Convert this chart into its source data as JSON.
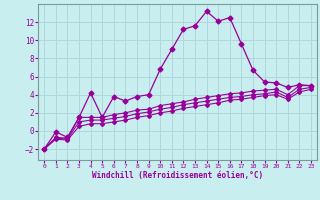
{
  "xlabel": "Windchill (Refroidissement éolien,°C)",
  "background_color": "#c8eef0",
  "grid_color": "#b0d8dc",
  "line_color": "#990099",
  "xlim": [
    -0.5,
    23.5
  ],
  "ylim": [
    -3.2,
    14.0
  ],
  "yticks": [
    -2,
    0,
    2,
    4,
    6,
    8,
    10,
    12
  ],
  "xticks": [
    0,
    1,
    2,
    3,
    4,
    5,
    6,
    7,
    8,
    9,
    10,
    11,
    12,
    13,
    14,
    15,
    16,
    17,
    18,
    19,
    20,
    21,
    22,
    23
  ],
  "series": [
    {
      "x": [
        0,
        1,
        2,
        3,
        4,
        5,
        6,
        7,
        8,
        9,
        10,
        11,
        12,
        13,
        14,
        15,
        16,
        17,
        18,
        19,
        20,
        21,
        22,
        23
      ],
      "y": [
        -2,
        -0.1,
        -0.7,
        1.5,
        4.2,
        1.5,
        3.8,
        3.3,
        3.8,
        4.0,
        6.8,
        9.0,
        11.2,
        11.6,
        13.2,
        12.1,
        12.5,
        9.6,
        6.7,
        5.4,
        5.3,
        4.8,
        5.1,
        5.0
      ]
    },
    {
      "x": [
        0,
        1,
        2,
        3,
        4,
        5,
        6,
        7,
        8,
        9,
        10,
        11,
        12,
        13,
        14,
        15,
        16,
        17,
        18,
        19,
        20,
        21,
        22,
        23
      ],
      "y": [
        -2,
        -0.7,
        -0.8,
        1.5,
        1.5,
        1.5,
        1.8,
        2.0,
        2.3,
        2.4,
        2.8,
        3.0,
        3.2,
        3.5,
        3.7,
        3.9,
        4.1,
        4.2,
        4.4,
        4.5,
        4.6,
        4.0,
        5.0,
        5.0
      ]
    },
    {
      "x": [
        0,
        1,
        2,
        3,
        4,
        5,
        6,
        7,
        8,
        9,
        10,
        11,
        12,
        13,
        14,
        15,
        16,
        17,
        18,
        19,
        20,
        21,
        22,
        23
      ],
      "y": [
        -2,
        -0.8,
        -0.9,
        1.0,
        1.2,
        1.2,
        1.4,
        1.6,
        1.9,
        2.1,
        2.4,
        2.6,
        2.9,
        3.1,
        3.3,
        3.5,
        3.7,
        3.8,
        4.0,
        4.1,
        4.3,
        3.7,
        4.6,
        4.8
      ]
    },
    {
      "x": [
        0,
        1,
        2,
        3,
        4,
        5,
        6,
        7,
        8,
        9,
        10,
        11,
        12,
        13,
        14,
        15,
        16,
        17,
        18,
        19,
        20,
        21,
        22,
        23
      ],
      "y": [
        -2,
        -0.9,
        -1.0,
        0.5,
        0.8,
        0.8,
        1.0,
        1.2,
        1.5,
        1.7,
        2.0,
        2.2,
        2.5,
        2.7,
        2.9,
        3.1,
        3.4,
        3.5,
        3.7,
        3.9,
        4.0,
        3.5,
        4.3,
        4.6
      ]
    }
  ]
}
